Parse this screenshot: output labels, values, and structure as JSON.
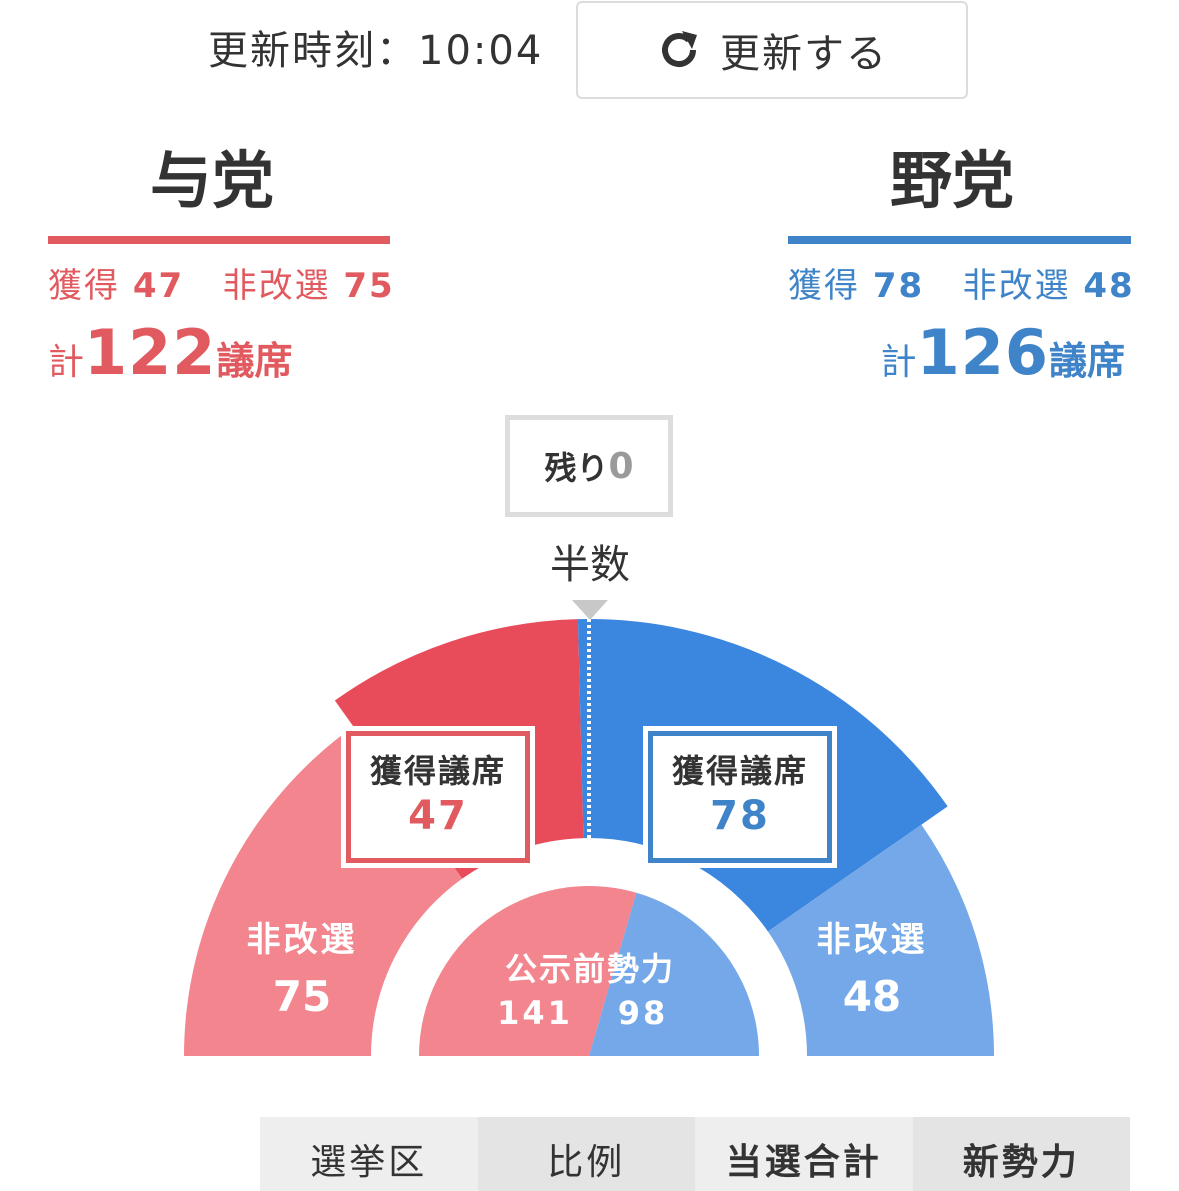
{
  "header": {
    "update_time": "更新時刻：10:04",
    "refresh_label": "更新する"
  },
  "ruling": {
    "name": "与党",
    "won_label": "獲得",
    "won": "47",
    "nonup_label": "非改選",
    "nonup": "75",
    "total_prefix": "計",
    "total": "122",
    "total_suffix": "議席",
    "color": "#e05a60"
  },
  "opposition": {
    "name": "野党",
    "won_label": "獲得",
    "won": "78",
    "nonup_label": "非改選",
    "nonup": "48",
    "total_prefix": "計",
    "total": "126",
    "total_suffix": "議席",
    "color": "#3f84c8"
  },
  "remaining": {
    "label": "残り",
    "value": "0"
  },
  "half_label": "半数",
  "chart": {
    "ruling_won_title": "獲得議席",
    "ruling_won": "47",
    "opp_won_title": "獲得議席",
    "opp_won": "78",
    "ruling_nonup_title": "非改選",
    "ruling_nonup": "75",
    "opp_nonup_title": "非改選",
    "opp_nonup": "48",
    "pre_title": "公示前勢力",
    "pre_ruling": "141",
    "pre_opp": "98"
  },
  "chart_data": {
    "type": "pie",
    "title": "",
    "half_label": "半数",
    "rings": [
      {
        "name": "獲得議席",
        "slices": [
          {
            "label": "与党",
            "value": 47,
            "color": "#e84c5a"
          },
          {
            "label": "野党",
            "value": 78,
            "color": "#3b86df"
          }
        ]
      },
      {
        "name": "非改選",
        "slices": [
          {
            "label": "与党",
            "value": 75,
            "color": "#f2858e"
          },
          {
            "label": "野党",
            "value": 48,
            "color": "#74a8e8"
          }
        ]
      },
      {
        "name": "公示前勢力",
        "slices": [
          {
            "label": "与党",
            "value": 141,
            "color": "#f2858e"
          },
          {
            "label": "野党",
            "value": 98,
            "color": "#74a8e8"
          }
        ]
      }
    ]
  },
  "tabs": [
    {
      "label": "選挙区",
      "bg": "#eeeeee",
      "bold": false
    },
    {
      "label": "比例",
      "bg": "#e4e4e4",
      "bold": false
    },
    {
      "label": "当選合計",
      "bg": "#eeeeee",
      "bold": true
    },
    {
      "label": "新勢力",
      "bg": "#e4e4e4",
      "bold": true
    }
  ]
}
